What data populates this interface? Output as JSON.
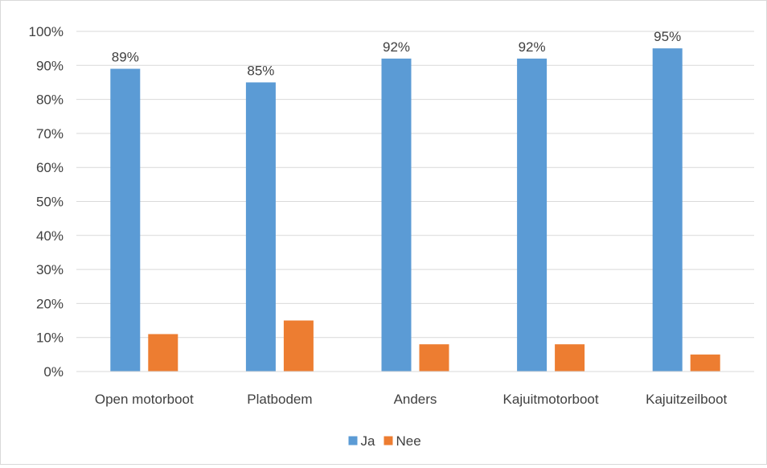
{
  "chart_data": {
    "type": "bar",
    "title": "",
    "xlabel": "",
    "ylabel": "",
    "categories": [
      "Open motorboot",
      "Platbodem",
      "Anders",
      "Kajuitmotorboot",
      "Kajuitzeilboot"
    ],
    "series": [
      {
        "name": "Ja",
        "color": "#5b9bd5",
        "values": [
          89,
          85,
          92,
          92,
          95
        ],
        "data_labels": [
          "89%",
          "85%",
          "92%",
          "92%",
          "95%"
        ]
      },
      {
        "name": "Nee",
        "color": "#ed7d31",
        "values": [
          11,
          15,
          8,
          8,
          5
        ]
      }
    ],
    "ylim": [
      0,
      100
    ],
    "yticks": [
      "0%",
      "10%",
      "20%",
      "30%",
      "40%",
      "50%",
      "60%",
      "70%",
      "80%",
      "90%",
      "100%"
    ],
    "grid": true,
    "legend_position": "bottom"
  }
}
